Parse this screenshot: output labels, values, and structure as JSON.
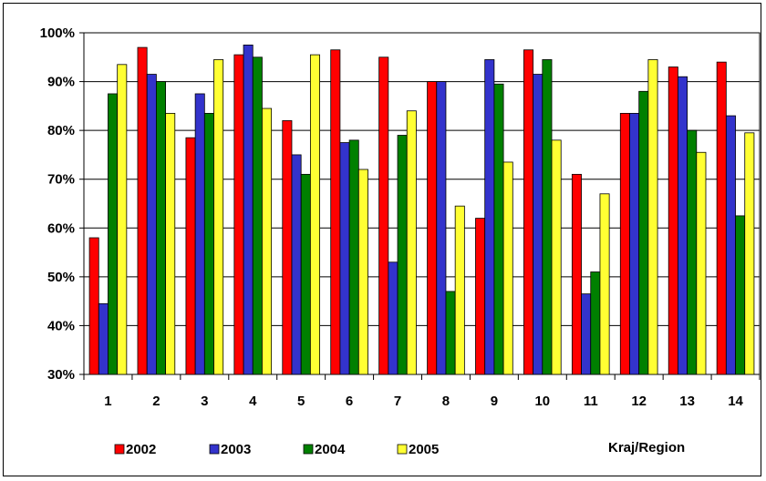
{
  "chart_data": {
    "type": "bar",
    "categories": [
      "1",
      "2",
      "3",
      "4",
      "5",
      "6",
      "7",
      "8",
      "9",
      "10",
      "11",
      "12",
      "13",
      "14"
    ],
    "series": [
      {
        "name": "2002",
        "color": "#ff0000",
        "values": [
          58,
          97,
          78.5,
          95.5,
          82,
          96.5,
          95,
          90,
          62,
          96.5,
          71,
          83.5,
          93,
          94
        ]
      },
      {
        "name": "2003",
        "color": "#3333cc",
        "values": [
          44.5,
          91.5,
          87.5,
          97.5,
          75,
          77.5,
          53,
          90,
          94.5,
          91.5,
          46.5,
          83.5,
          91,
          83
        ]
      },
      {
        "name": "2004",
        "color": "#008000",
        "values": [
          87.5,
          90,
          83.5,
          95,
          71,
          78,
          79,
          47,
          89.5,
          94.5,
          51,
          88,
          80,
          62.5
        ]
      },
      {
        "name": "2005",
        "color": "#ffff33",
        "values": [
          93.5,
          83.5,
          94.5,
          84.5,
          95.5,
          72,
          84,
          64.5,
          73.5,
          78,
          67,
          94.5,
          75.5,
          79.5
        ]
      }
    ],
    "ylim": [
      30,
      100
    ],
    "yticks": [
      "30%",
      "40%",
      "50%",
      "60%",
      "70%",
      "80%",
      "90%",
      "100%"
    ],
    "xlabel": "Kraj/Region",
    "grid": true,
    "legend_position": "bottom"
  }
}
